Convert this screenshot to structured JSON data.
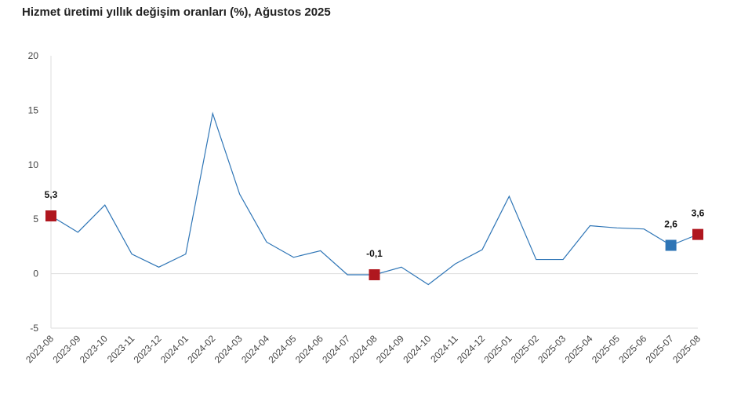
{
  "chart_data": {
    "type": "line",
    "title": "Hizmet üretimi yıllık değişim oranları (%), Ağustos 2025",
    "xlabel": "",
    "ylabel": "",
    "ylim": [
      -5,
      20
    ],
    "yticks": [
      "20",
      "15",
      "10",
      "5",
      "0",
      "-5"
    ],
    "ytick_values": [
      20,
      15,
      10,
      5,
      0,
      -5
    ],
    "categories": [
      "2023-08",
      "2023-09",
      "2023-10",
      "2023-11",
      "2023-12",
      "2024-01",
      "2024-02",
      "2024-03",
      "2024-04",
      "2024-05",
      "2024-06",
      "2024-07",
      "2024-08",
      "2024-09",
      "2024-10",
      "2024-11",
      "2024-12",
      "2025-01",
      "2025-02",
      "2025-03",
      "2025-04",
      "2025-05",
      "2025-06",
      "2025-07",
      "2025-08"
    ],
    "series": [
      {
        "name": "Hizmet üretimi yıllık değişim",
        "color": "#2e75b6",
        "values": [
          5.3,
          3.8,
          6.3,
          1.8,
          0.6,
          1.8,
          14.7,
          7.3,
          2.9,
          1.5,
          2.1,
          -0.1,
          -0.1,
          0.6,
          -1.0,
          0.9,
          2.2,
          7.1,
          1.3,
          1.3,
          4.4,
          4.2,
          4.1,
          2.6,
          3.6
        ]
      }
    ],
    "highlights": [
      {
        "index": 0,
        "label": "5,3",
        "color": "#b0171f"
      },
      {
        "index": 12,
        "label": "-0,1",
        "color": "#b0171f"
      },
      {
        "index": 23,
        "label": "2,6",
        "color": "#2e75b6"
      },
      {
        "index": 24,
        "label": "3,6",
        "color": "#b0171f"
      }
    ],
    "grid": false,
    "legend": "none"
  }
}
